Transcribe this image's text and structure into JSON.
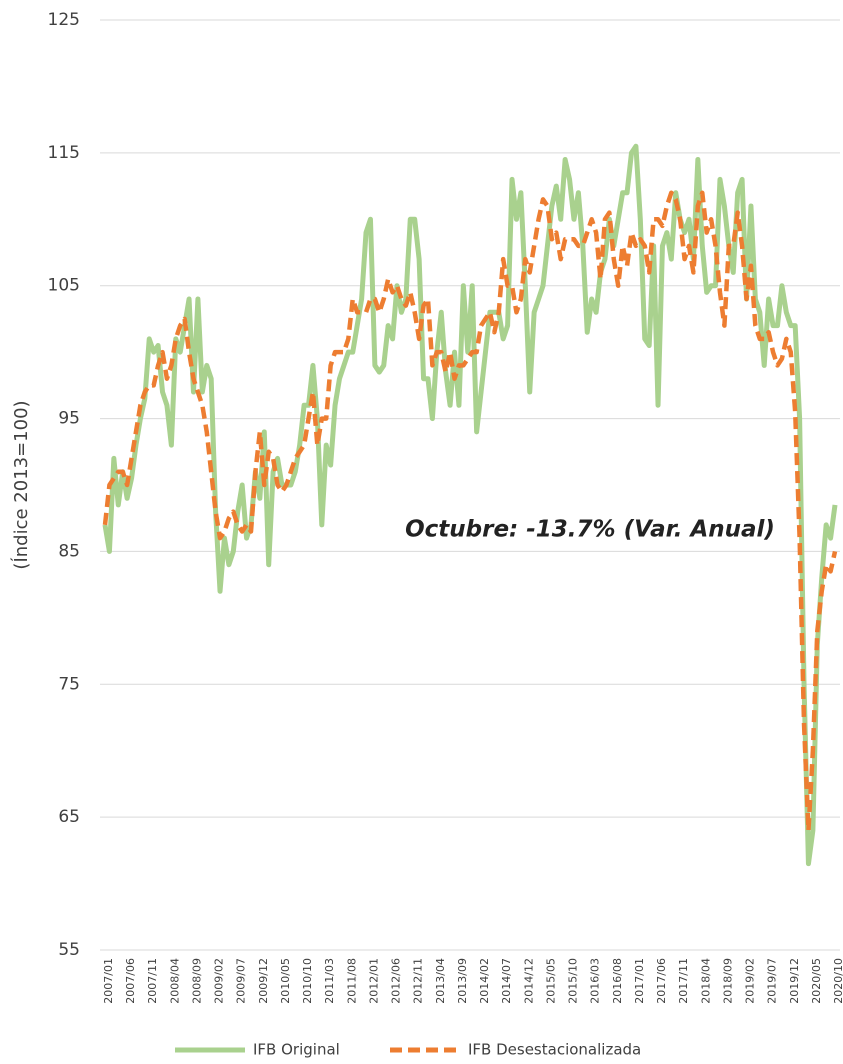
{
  "chart_data": {
    "type": "line",
    "y_label": "(Índice 2013=100)",
    "annotation": "Octubre: -13.7% (Var. Anual)",
    "ylim": [
      55,
      125
    ],
    "yticks": [
      55,
      65,
      75,
      85,
      95,
      105,
      115,
      125
    ],
    "grid": true,
    "legend": "bottom",
    "categories": [
      "2007/01",
      null,
      null,
      null,
      null,
      "2007/06",
      null,
      null,
      null,
      null,
      "2007/11",
      null,
      null,
      null,
      null,
      "2008/04",
      null,
      null,
      null,
      null,
      "2008/09",
      null,
      null,
      null,
      null,
      "2009/02",
      null,
      null,
      null,
      null,
      "2009/07",
      null,
      null,
      null,
      null,
      "2009/12",
      null,
      null,
      null,
      null,
      "2010/05",
      null,
      null,
      null,
      null,
      "2010/10",
      null,
      null,
      null,
      null,
      "2011/03",
      null,
      null,
      null,
      null,
      "2011/08",
      null,
      null,
      null,
      null,
      "2012/01",
      null,
      null,
      null,
      null,
      "2012/06",
      null,
      null,
      null,
      null,
      "2012/11",
      null,
      null,
      null,
      null,
      "2013/04",
      null,
      null,
      null,
      null,
      "2013/09",
      null,
      null,
      null,
      null,
      "2014/02",
      null,
      null,
      null,
      null,
      "2014/07",
      null,
      null,
      null,
      null,
      "2014/12",
      null,
      null,
      null,
      null,
      "2015/05",
      null,
      null,
      null,
      null,
      "2015/10",
      null,
      null,
      null,
      null,
      "2016/03",
      null,
      null,
      null,
      null,
      "2016/08",
      null,
      null,
      null,
      null,
      "2017/01",
      null,
      null,
      null,
      null,
      "2017/06",
      null,
      null,
      null,
      null,
      "2017/11",
      null,
      null,
      null,
      null,
      "2018/04",
      null,
      null,
      null,
      null,
      "2018/09",
      null,
      null,
      null,
      null,
      "2019/02",
      null,
      null,
      null,
      null,
      "2019/07",
      null,
      null,
      null,
      null,
      "2019/12",
      null,
      null,
      null,
      null,
      "2020/05",
      null,
      null,
      null,
      null,
      "2020/10"
    ],
    "series": [
      {
        "name": "IFB Original",
        "color": "#a9d18e",
        "dash": "solid",
        "values": [
          87,
          85,
          92,
          88.5,
          91,
          89,
          90.5,
          93,
          95,
          96.5,
          101,
          100,
          100.5,
          97,
          96,
          93,
          101,
          100,
          102,
          104,
          97,
          104,
          97,
          99,
          98,
          88,
          82,
          86,
          84,
          85,
          88,
          90,
          86,
          87,
          91,
          89,
          94,
          84,
          91,
          92,
          90,
          90,
          90,
          91,
          93,
          96,
          96,
          99,
          95,
          87,
          93,
          91.5,
          96,
          98,
          99,
          100,
          100,
          102,
          104,
          109,
          110,
          99,
          98.5,
          99,
          102,
          101,
          105,
          103,
          104,
          110,
          110,
          107,
          98,
          98,
          95,
          100,
          103,
          98.5,
          96,
          100,
          96,
          105,
          100,
          105,
          94,
          97,
          100,
          103,
          103,
          103,
          101,
          102,
          113,
          110,
          112,
          105,
          97,
          103,
          104,
          105,
          108,
          111,
          112.5,
          110,
          114.5,
          113,
          110,
          112,
          108,
          101.5,
          104,
          103,
          106,
          107,
          110,
          108,
          110,
          112,
          112,
          115,
          115.5,
          110,
          101,
          100.5,
          108,
          96,
          108,
          109,
          107,
          112,
          110,
          109,
          110,
          107,
          114.5,
          108,
          104.5,
          105,
          105,
          113,
          111,
          108,
          106,
          112,
          113,
          104,
          111,
          104,
          103,
          99,
          104,
          102,
          102,
          105,
          103,
          102,
          102,
          95,
          75,
          61.5,
          64,
          78,
          83,
          87,
          86,
          88.5
        ]
      },
      {
        "name": "IFB Desestacionalizada",
        "color": "#ed7d31",
        "dash": "dashed",
        "values": [
          87,
          90,
          90.5,
          91,
          91,
          90,
          92,
          94,
          96,
          97,
          97.5,
          97.5,
          99,
          100,
          98,
          99,
          101,
          102,
          102.5,
          100,
          98,
          97,
          96,
          94,
          91,
          88,
          86,
          86.5,
          87.5,
          88,
          87,
          86.5,
          87,
          86.5,
          91,
          94,
          90,
          92.5,
          92,
          90,
          89.5,
          90,
          91,
          92,
          92.5,
          93,
          95,
          97,
          93,
          95,
          95,
          99,
          100,
          100,
          100,
          101,
          104,
          103,
          103,
          103,
          104,
          104,
          103,
          104,
          105.5,
          104.5,
          105,
          104,
          103.5,
          104.5,
          103,
          101,
          103.5,
          104,
          99,
          100,
          100,
          98.5,
          100,
          98,
          99,
          99,
          99.5,
          100,
          100,
          102,
          102.5,
          103,
          101.5,
          103,
          107,
          105,
          105,
          103,
          104,
          107,
          106,
          108,
          110,
          111.5,
          111,
          108.5,
          109,
          107,
          108.5,
          108.5,
          108.5,
          108,
          108,
          109,
          110,
          109,
          105.5,
          110,
          110.5,
          107,
          105,
          108,
          106.5,
          109,
          108,
          108.5,
          108,
          106,
          110,
          110,
          109.5,
          111,
          112,
          111.5,
          110,
          107,
          108,
          106,
          111,
          112,
          109,
          110,
          108,
          104.5,
          102,
          108,
          108,
          110.5,
          108,
          104,
          106.5,
          102,
          101,
          101,
          101.5,
          100,
          99,
          99.5,
          101,
          100,
          95.5,
          86,
          72,
          64,
          70,
          79,
          82,
          84,
          83.5,
          85
        ]
      }
    ]
  }
}
